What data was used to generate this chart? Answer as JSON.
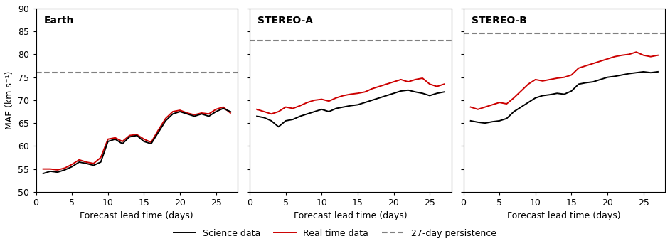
{
  "panels": [
    {
      "title": "Earth",
      "ylim": [
        50,
        90
      ],
      "persistence": 76.0,
      "science": [
        54.0,
        54.5,
        54.3,
        54.8,
        55.5,
        56.5,
        56.2,
        55.8,
        56.5,
        61.0,
        61.5,
        60.5,
        62.0,
        62.3,
        61.0,
        60.5,
        63.0,
        65.5,
        67.0,
        67.5,
        67.0,
        66.5,
        67.0,
        66.5,
        67.5,
        68.2,
        67.5
      ],
      "realtime": [
        55.0,
        55.0,
        54.8,
        55.2,
        56.0,
        57.0,
        56.5,
        56.2,
        57.5,
        61.5,
        61.8,
        61.0,
        62.3,
        62.5,
        61.5,
        60.8,
        63.5,
        66.0,
        67.5,
        67.8,
        67.2,
        66.8,
        67.2,
        67.0,
        68.0,
        68.5,
        67.2
      ]
    },
    {
      "title": "STEREO-A",
      "ylim": [
        50,
        90
      ],
      "persistence": 83.0,
      "science": [
        66.5,
        66.2,
        65.5,
        64.2,
        65.5,
        65.8,
        66.5,
        67.0,
        67.5,
        68.0,
        67.5,
        68.2,
        68.5,
        68.8,
        69.0,
        69.5,
        70.0,
        70.5,
        71.0,
        71.5,
        72.0,
        72.2,
        71.8,
        71.5,
        71.0,
        71.5,
        71.8
      ],
      "realtime": [
        68.0,
        67.5,
        67.0,
        67.5,
        68.5,
        68.2,
        68.8,
        69.5,
        70.0,
        70.2,
        69.8,
        70.5,
        71.0,
        71.3,
        71.5,
        71.8,
        72.5,
        73.0,
        73.5,
        74.0,
        74.5,
        74.0,
        74.5,
        74.8,
        73.5,
        73.0,
        73.5
      ]
    },
    {
      "title": "STEREO-B",
      "ylim": [
        50,
        90
      ],
      "persistence": 84.5,
      "science": [
        65.5,
        65.2,
        65.0,
        65.3,
        65.5,
        66.0,
        67.5,
        68.5,
        69.5,
        70.5,
        71.0,
        71.2,
        71.5,
        71.3,
        72.0,
        73.5,
        73.8,
        74.0,
        74.5,
        75.0,
        75.2,
        75.5,
        75.8,
        76.0,
        76.2,
        76.0,
        76.2
      ],
      "realtime": [
        68.5,
        68.0,
        68.5,
        69.0,
        69.5,
        69.2,
        70.5,
        72.0,
        73.5,
        74.5,
        74.2,
        74.5,
        74.8,
        75.0,
        75.5,
        77.0,
        77.5,
        78.0,
        78.5,
        79.0,
        79.5,
        79.8,
        80.0,
        80.5,
        79.8,
        79.5,
        79.8
      ]
    }
  ],
  "x_start": 1,
  "n_points": 27,
  "xlim": [
    0,
    28
  ],
  "xticks": [
    0,
    5,
    10,
    15,
    20,
    25
  ],
  "yticks": [
    50,
    55,
    60,
    65,
    70,
    75,
    80,
    85,
    90
  ],
  "xlabel": "Forecast lead time (days)",
  "ylabel": "MAE (km s⁻¹)",
  "legend_labels": [
    "Science data",
    "Real time data",
    "27-day persistence"
  ],
  "science_color": "#000000",
  "realtime_color": "#cc0000",
  "persistence_color": "#808080",
  "science_lw": 1.4,
  "realtime_lw": 1.4,
  "persistence_lw": 1.5,
  "background_color": "#ffffff",
  "title_fontsize": 10,
  "axis_fontsize": 9,
  "tick_fontsize": 9,
  "legend_fontsize": 9
}
